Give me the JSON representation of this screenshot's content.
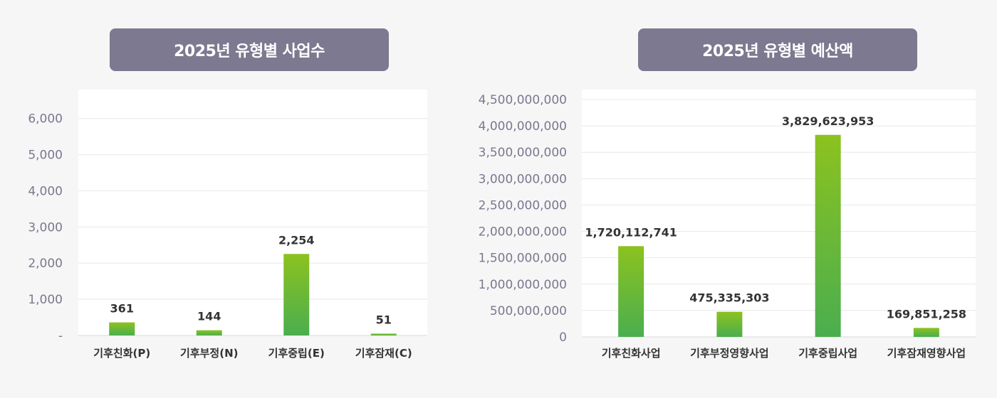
{
  "chart_data": [
    {
      "type": "bar",
      "title": "2025년 유형별 사업수",
      "categories": [
        "기후친화(P)",
        "기후부정(N)",
        "기후중립(E)",
        "기후잠재(C)"
      ],
      "values": [
        361,
        144,
        2254,
        51
      ],
      "data_labels": [
        "361",
        "144",
        "2,254",
        "51"
      ],
      "y_ticks": [
        "-",
        "1,000",
        "2,000",
        "3,000",
        "4,000",
        "5,000",
        "6,000"
      ],
      "ylim": [
        0,
        6800
      ],
      "grid": true
    },
    {
      "type": "bar",
      "title": "2025년 유형별 예산액",
      "categories": [
        "기후친화사업",
        "기후부정영향사업",
        "기후중립사업",
        "기후잠재영향사업"
      ],
      "values": [
        1720112741,
        475335303,
        3829623953,
        169851258
      ],
      "data_labels": [
        "1,720,112,741",
        "475,335,303",
        "3,829,623,953",
        "169,851,258"
      ],
      "y_ticks": [
        "0",
        "500,000,000",
        "1,000,000,000",
        "1,500,000,000",
        "2,000,000,000",
        "2,500,000,000",
        "3,000,000,000",
        "3,500,000,000",
        "4,000,000,000",
        "4,500,000,000"
      ],
      "ylim": [
        0,
        4500000000
      ],
      "grid": true
    }
  ],
  "colors": {
    "bar_top": "#8cc21f",
    "bar_bottom": "#4aae4f",
    "title_bg": "#7c7990"
  }
}
